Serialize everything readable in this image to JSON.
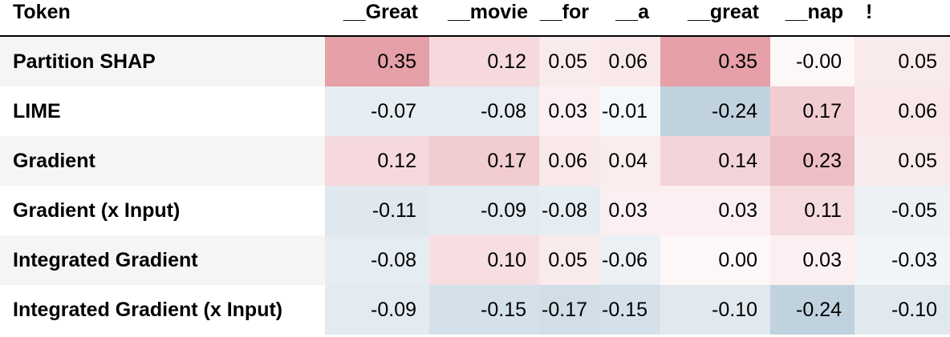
{
  "table": {
    "header_label": "Token",
    "tokens": [
      "__Great",
      "__movie",
      "__for",
      "__a",
      "__great",
      "__nap",
      "!"
    ],
    "rows": [
      {
        "method": "Partition SHAP",
        "values": [
          "0.35",
          "0.12",
          "0.05",
          "0.06",
          "0.35",
          "-0.00",
          "0.05"
        ]
      },
      {
        "method": "LIME",
        "values": [
          "-0.07",
          "-0.08",
          "0.03",
          "-0.01",
          "-0.24",
          "0.17",
          "0.06"
        ]
      },
      {
        "method": "Gradient",
        "values": [
          "0.12",
          "0.17",
          "0.06",
          "0.04",
          "0.14",
          "0.23",
          "0.05"
        ]
      },
      {
        "method": "Gradient (x Input)",
        "values": [
          "-0.11",
          "-0.09",
          "-0.08",
          "0.03",
          "0.03",
          "0.11",
          "-0.05"
        ]
      },
      {
        "method": "Integrated Gradient",
        "values": [
          "-0.08",
          "0.10",
          "0.05",
          "-0.06",
          "0.00",
          "0.03",
          "-0.03"
        ]
      },
      {
        "method": "Integrated Gradient (x Input)",
        "values": [
          "-0.09",
          "-0.15",
          "-0.17",
          "-0.15",
          "-0.10",
          "-0.24",
          "-0.10"
        ]
      }
    ]
  },
  "colors": {
    "positive": "#d9737f",
    "negative": "#7fa3bd",
    "neutral": "#ffffff",
    "max_abs": 0.35
  }
}
